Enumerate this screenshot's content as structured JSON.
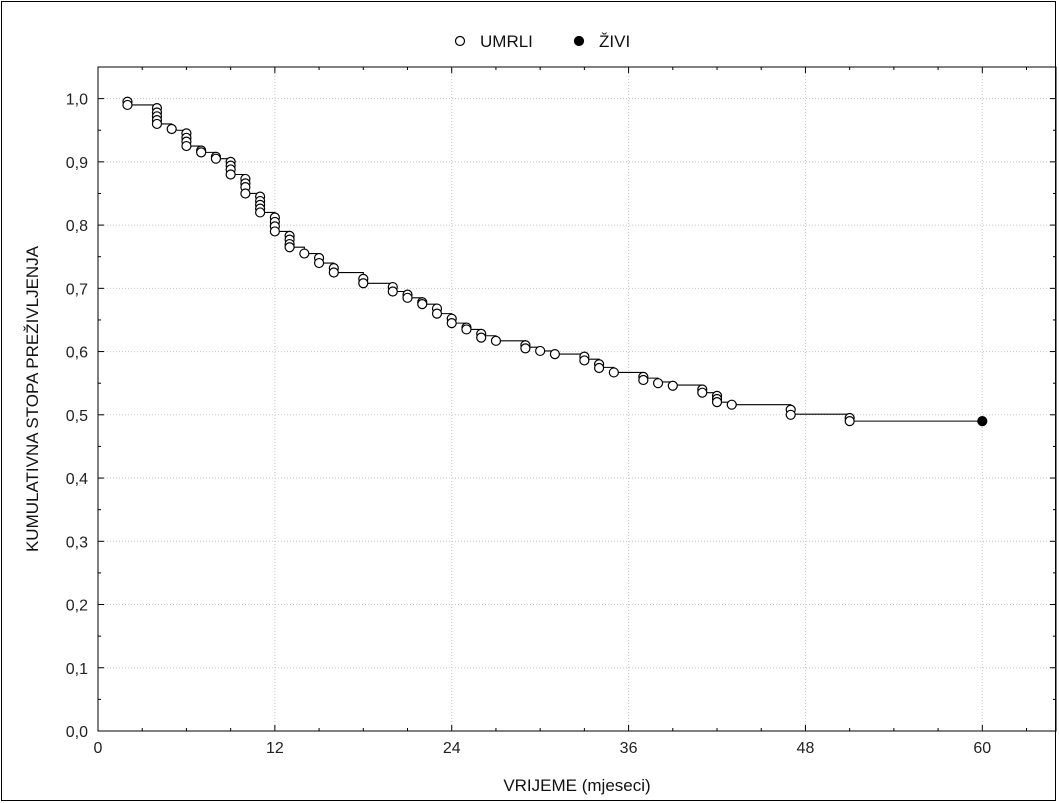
{
  "chart_data": {
    "type": "scatter",
    "title": "",
    "xlabel": "VRIJEME (mjeseci)",
    "ylabel": "KUMULATIVNA STOPA PREŽIVLJENJA",
    "xlim": [
      0,
      65
    ],
    "ylim": [
      0,
      1.05
    ],
    "xticks": [
      0,
      12,
      24,
      36,
      48,
      60
    ],
    "yticks": [
      0.0,
      0.1,
      0.2,
      0.3,
      0.4,
      0.5,
      0.6,
      0.7,
      0.8,
      0.9,
      1.0
    ],
    "ytick_labels": [
      "0,0",
      "0,1",
      "0,2",
      "0,3",
      "0,4",
      "0,5",
      "0,6",
      "0,7",
      "0,8",
      "0,9",
      "1,0"
    ],
    "xtick_labels": [
      "0",
      "12",
      "24",
      "36",
      "48",
      "60"
    ],
    "grid": true,
    "legend_position": "top",
    "survival_curve": {
      "x": [
        2,
        4,
        5,
        6,
        7,
        8,
        9,
        10,
        11,
        12,
        13,
        14,
        15,
        16,
        18,
        20,
        21,
        22,
        23,
        24,
        25,
        26,
        27,
        29,
        30,
        31,
        33,
        34,
        35,
        37,
        38,
        39,
        41,
        42,
        43,
        47,
        51
      ],
      "y": [
        0.99,
        0.96,
        0.95,
        0.925,
        0.915,
        0.905,
        0.88,
        0.85,
        0.82,
        0.79,
        0.765,
        0.755,
        0.74,
        0.725,
        0.708,
        0.695,
        0.685,
        0.675,
        0.66,
        0.645,
        0.635,
        0.625,
        0.617,
        0.607,
        0.601,
        0.596,
        0.588,
        0.575,
        0.567,
        0.558,
        0.552,
        0.547,
        0.535,
        0.52,
        0.516,
        0.501,
        0.49
      ],
      "start_y": 0.99,
      "end_x": 60
    },
    "series": [
      {
        "name": "UMRLI",
        "marker": "open-circle",
        "color": "#000000",
        "points": [
          [
            2,
            0.995
          ],
          [
            2,
            0.99
          ],
          [
            4,
            0.985
          ],
          [
            4,
            0.978
          ],
          [
            4,
            0.972
          ],
          [
            4,
            0.966
          ],
          [
            4,
            0.96
          ],
          [
            5,
            0.952
          ],
          [
            6,
            0.945
          ],
          [
            6,
            0.938
          ],
          [
            6,
            0.932
          ],
          [
            6,
            0.925
          ],
          [
            7,
            0.918
          ],
          [
            7,
            0.915
          ],
          [
            8,
            0.908
          ],
          [
            8,
            0.905
          ],
          [
            9,
            0.9
          ],
          [
            9,
            0.894
          ],
          [
            9,
            0.888
          ],
          [
            9,
            0.88
          ],
          [
            10,
            0.873
          ],
          [
            10,
            0.866
          ],
          [
            10,
            0.86
          ],
          [
            10,
            0.85
          ],
          [
            11,
            0.845
          ],
          [
            11,
            0.838
          ],
          [
            11,
            0.832
          ],
          [
            11,
            0.826
          ],
          [
            11,
            0.82
          ],
          [
            12,
            0.812
          ],
          [
            12,
            0.805
          ],
          [
            12,
            0.798
          ],
          [
            12,
            0.79
          ],
          [
            13,
            0.783
          ],
          [
            13,
            0.777
          ],
          [
            13,
            0.77
          ],
          [
            13,
            0.765
          ],
          [
            14,
            0.755
          ],
          [
            15,
            0.748
          ],
          [
            15,
            0.74
          ],
          [
            16,
            0.732
          ],
          [
            16,
            0.725
          ],
          [
            18,
            0.715
          ],
          [
            18,
            0.708
          ],
          [
            20,
            0.702
          ],
          [
            20,
            0.695
          ],
          [
            21,
            0.69
          ],
          [
            21,
            0.685
          ],
          [
            22,
            0.678
          ],
          [
            22,
            0.675
          ],
          [
            23,
            0.668
          ],
          [
            23,
            0.66
          ],
          [
            24,
            0.652
          ],
          [
            24,
            0.645
          ],
          [
            25,
            0.638
          ],
          [
            25,
            0.635
          ],
          [
            26,
            0.628
          ],
          [
            26,
            0.622
          ],
          [
            27,
            0.617
          ],
          [
            29,
            0.61
          ],
          [
            29,
            0.605
          ],
          [
            30,
            0.601
          ],
          [
            31,
            0.596
          ],
          [
            33,
            0.592
          ],
          [
            33,
            0.586
          ],
          [
            34,
            0.58
          ],
          [
            34,
            0.574
          ],
          [
            35,
            0.567
          ],
          [
            37,
            0.56
          ],
          [
            37,
            0.555
          ],
          [
            38,
            0.55
          ],
          [
            39,
            0.546
          ],
          [
            41,
            0.54
          ],
          [
            41,
            0.535
          ],
          [
            42,
            0.53
          ],
          [
            42,
            0.525
          ],
          [
            42,
            0.52
          ],
          [
            43,
            0.516
          ],
          [
            47,
            0.508
          ],
          [
            47,
            0.5
          ],
          [
            51,
            0.495
          ],
          [
            51,
            0.49
          ]
        ]
      },
      {
        "name": "ŽIVI",
        "marker": "filled-circle",
        "color": "#000000",
        "points": [
          [
            60,
            0.49
          ]
        ]
      }
    ]
  }
}
